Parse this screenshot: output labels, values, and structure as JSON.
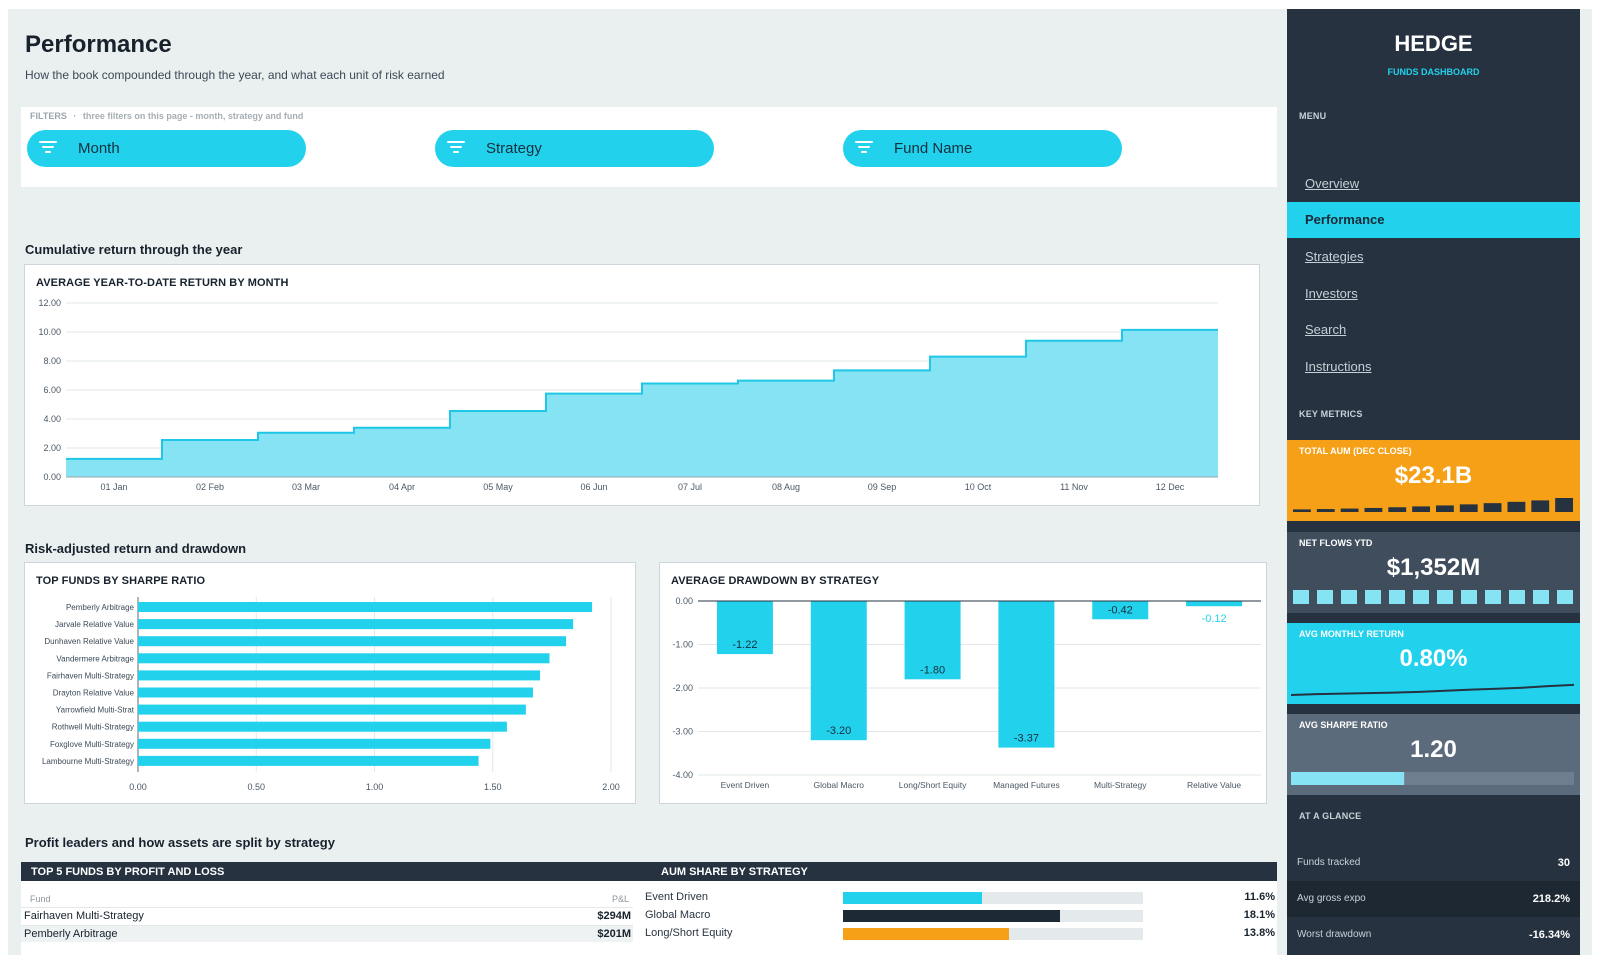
{
  "header": {
    "title": "Performance",
    "subtitle": "How the book compounded through the year, and what each unit of risk earned"
  },
  "filters": {
    "caption": "FILTERS",
    "caption_note": "three filters on this page - month, strategy and fund",
    "items": [
      {
        "label": "Month",
        "icon": "filter-icon"
      },
      {
        "label": "Strategy",
        "icon": "filter-icon"
      },
      {
        "label": "Fund Name",
        "icon": "filter-icon"
      }
    ]
  },
  "sections": {
    "cumulative": "Cumulative return through the year",
    "risk": "Risk-adjusted return and drawdown",
    "profit": "Profit leaders and how assets are split by strategy"
  },
  "chart_data": [
    {
      "type": "area",
      "title": "AVERAGE YEAR-TO-DATE RETURN BY MONTH",
      "step": true,
      "categories": [
        "01 Jan",
        "02 Feb",
        "03 Mar",
        "04 Apr",
        "05 May",
        "06 Jun",
        "07 Jul",
        "08 Aug",
        "09 Sep",
        "10 Oct",
        "11 Nov",
        "12 Dec"
      ],
      "values": [
        1.25,
        2.55,
        3.05,
        3.4,
        4.55,
        5.75,
        6.45,
        6.65,
        7.35,
        8.3,
        9.4,
        10.15
      ],
      "ylim": [
        0,
        12
      ],
      "yticks": [
        "0.00",
        "2.00",
        "4.00",
        "6.00",
        "8.00",
        "10.00",
        "12.00"
      ],
      "grid": true,
      "color": "#86e3f4",
      "line_color": "#1fc7e6"
    },
    {
      "type": "bar",
      "orientation": "horizontal",
      "title": "TOP FUNDS BY SHARPE RATIO",
      "categories": [
        "Pemberly Arbitrage",
        "Jarvale Relative Value",
        "Dunhaven Relative Value",
        "Vandermere Arbitrage",
        "Fairhaven Multi-Strategy",
        "Drayton Relative Value",
        "Yarrowfield Multi-Strat",
        "Rothwell Multi-Strategy",
        "Foxglove Multi-Strategy",
        "Lambourne Multi-Strategy"
      ],
      "values": [
        1.92,
        1.84,
        1.81,
        1.74,
        1.7,
        1.67,
        1.64,
        1.56,
        1.49,
        1.44
      ],
      "xlim": [
        0,
        2
      ],
      "xticks": [
        "0.00",
        "0.50",
        "1.00",
        "1.50",
        "2.00"
      ],
      "grid": true,
      "color": "#22d1ec"
    },
    {
      "type": "bar",
      "title": "AVERAGE DRAWDOWN BY STRATEGY",
      "categories": [
        "Event Driven",
        "Global Macro",
        "Long/Short Equity",
        "Managed Futures",
        "Multi-Strategy",
        "Relative Value"
      ],
      "values": [
        -1.22,
        -3.2,
        -1.8,
        -3.37,
        -0.42,
        -0.12
      ],
      "labels": [
        "-1.22",
        "-3.20",
        "-1.80",
        "-3.37",
        "-0.42",
        "-0.12"
      ],
      "ylim": [
        -4,
        0
      ],
      "yticks": [
        "0.00",
        "-1.00",
        "-2.00",
        "-3.00",
        "-4.00"
      ],
      "grid": true,
      "color": "#22d1ec"
    }
  ],
  "pl_table": {
    "title": "TOP 5 FUNDS BY PROFIT AND LOSS",
    "col_fund": "Fund",
    "col_pl": "P&L",
    "rows": [
      {
        "fund": "Fairhaven Multi-Strategy",
        "pl": "$294M"
      },
      {
        "fund": "Pemberly Arbitrage",
        "pl": "$201M"
      }
    ]
  },
  "aum_share": {
    "title": "AUM SHARE BY STRATEGY",
    "rows": [
      {
        "name": "Event Driven",
        "pct": "11.6%",
        "fraction": 0.116,
        "color": "#22d1ec"
      },
      {
        "name": "Global Macro",
        "pct": "18.1%",
        "fraction": 0.181,
        "color": "#1d2935"
      },
      {
        "name": "Long/Short Equity",
        "pct": "13.8%",
        "fraction": 0.138,
        "color": "#f5a016"
      }
    ]
  },
  "sidebar": {
    "brand": "HEDGE",
    "brand_sub": "FUNDS DASHBOARD",
    "menu_caption": "MENU",
    "menu": [
      {
        "label": "Overview",
        "active": false
      },
      {
        "label": "Performance",
        "active": true
      },
      {
        "label": "Strategies",
        "active": false
      },
      {
        "label": "Investors",
        "active": false
      },
      {
        "label": "Search",
        "active": false
      },
      {
        "label": "Instructions",
        "active": false
      }
    ],
    "metrics_caption": "KEY METRICS",
    "kpis": [
      {
        "caption": "TOTAL AUM (DEC CLOSE)",
        "value": "$23.1B",
        "bg": "#f5a016",
        "spark": "bars",
        "spark_values": [
          0.05,
          0.08,
          0.12,
          0.17,
          0.23,
          0.3,
          0.38,
          0.47,
          0.57,
          0.68,
          0.8,
          1.0
        ],
        "spark_color": "#263240"
      },
      {
        "caption": "NET FLOWS YTD",
        "value": "$1,352M",
        "bg": "#3f4d5c",
        "spark": "blocks",
        "spark_count": 12,
        "spark_color": "#86e3f4"
      },
      {
        "caption": "AVG MONTHLY RETURN",
        "value": "0.80%",
        "bg": "#22d1ec",
        "spark": "line",
        "spark_values": [
          0.0,
          0.06,
          0.1,
          0.13,
          0.17,
          0.22,
          0.3,
          0.38,
          0.45,
          0.52,
          0.63,
          0.72
        ],
        "spark_color": "#263240"
      },
      {
        "caption": "AVG SHARPE RATIO",
        "value": "1.20",
        "bg": "#5c6b7c",
        "spark": "progress",
        "progress": 0.4,
        "spark_color": "#86e3f4"
      }
    ],
    "glance_caption": "AT A GLANCE",
    "glance": [
      {
        "label": "Funds tracked",
        "value": "30"
      },
      {
        "label": "Avg gross expo",
        "value": "218.2%"
      },
      {
        "label": "Worst drawdown",
        "value": "-16.34%"
      }
    ]
  }
}
